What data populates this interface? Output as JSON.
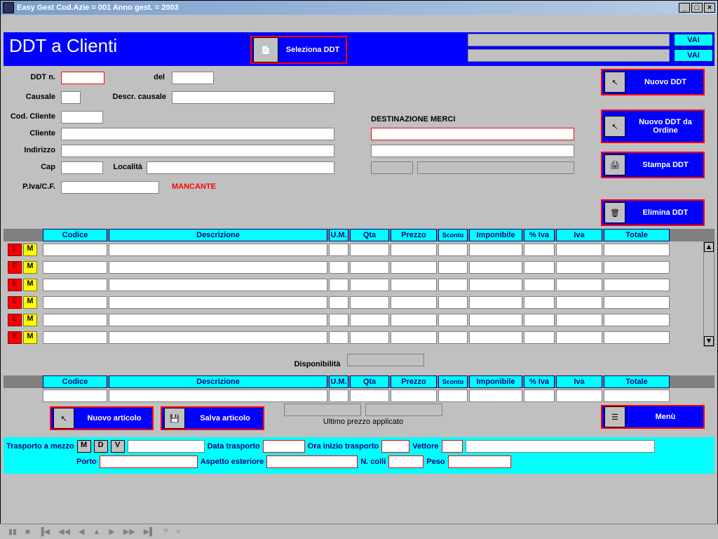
{
  "titlebar": {
    "text": "Easy Gest Cod.Azie = 001  Anno gest. = 2003"
  },
  "banner": {
    "title": "DDT a Clienti",
    "vai": "VAI"
  },
  "sel_ddt": "Seleziona DDT",
  "form": {
    "ddt_n": "DDT n.",
    "del": "del",
    "causale": "Causale",
    "descr_causale": "Descr. causale",
    "cod_cliente": "Cod. Cliente",
    "cliente": "Cliente",
    "indirizzo": "Indirizzo",
    "cap": "Cap",
    "localita": "Località",
    "piva": "P.Iva/C.F.",
    "mancante": "MANCANTE",
    "dest_merci": "DESTINAZIONE MERCI"
  },
  "actions": {
    "nuovo_ddt": "Nuovo DDT",
    "nuovo_ddt_ordine": "Nuovo DDT da Ordine",
    "stampa_ddt": "Stampa DDT",
    "elimina_ddt": "Elimina DDT",
    "nuovo_articolo": "Nuovo articolo",
    "salva_articolo": "Salva articolo",
    "menu": "Menù"
  },
  "grid": {
    "headers": {
      "codice": "Codice",
      "descrizione": "Descrizione",
      "um": "U.M.",
      "qta": "Qta",
      "prezzo": "Prezzo",
      "sconto": "Sconto",
      "imponibile": "Imponibile",
      "piva": "% Iva",
      "iva": "Iva",
      "totale": "Totale"
    },
    "row_e": "E",
    "row_m": "M"
  },
  "disponibilita": "Disponibilità",
  "ultimo": "Ultimo prezzo applicato",
  "transport": {
    "trasporto_mezzo": "Trasporto a mezzo",
    "m": "M",
    "d": "D",
    "v": "V",
    "data_trasporto": "Data trasporto",
    "ora_inizio": "Ora inizio trasporto",
    "vettore": "Vettore",
    "porto": "Porto",
    "aspetto": "Aspetto esteriore",
    "n_colli": "N. colli",
    "peso": "Peso"
  }
}
